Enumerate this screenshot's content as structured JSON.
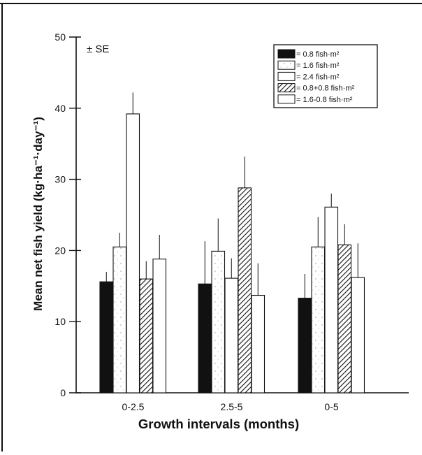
{
  "chart_data": {
    "type": "bar",
    "xlabel": "Growth intervals (months)",
    "ylabel": "Mean net fish yield (kg·ha⁻¹·day⁻¹)",
    "ylim": [
      0,
      50
    ],
    "yticks": [
      0,
      10,
      20,
      30,
      40,
      50
    ],
    "annotation": "± SE",
    "categories": [
      "0-2.5",
      "2.5-5",
      "0-5"
    ],
    "series": [
      {
        "name": "= 0.8 fish·m²",
        "values": [
          15.6,
          15.3,
          13.3
        ],
        "se": [
          1.4,
          6.0,
          3.4
        ],
        "fill": "black"
      },
      {
        "name": "= 1.6 fish·m²",
        "values": [
          20.5,
          19.9,
          20.5
        ],
        "se": [
          2.0,
          4.6,
          4.2
        ],
        "fill": "stipple"
      },
      {
        "name": "= 2.4 fish·m²",
        "values": [
          39.2,
          16.1,
          26.1
        ],
        "se": [
          3.0,
          2.8,
          1.9
        ],
        "fill": "white"
      },
      {
        "name": "= 0.8+0.8 fish·m²",
        "values": [
          16.0,
          28.8,
          20.8
        ],
        "se": [
          2.5,
          4.4,
          2.9
        ],
        "fill": "hatch"
      },
      {
        "name": "= 1.6-0.8 fish·m²",
        "values": [
          18.8,
          13.7,
          16.2
        ],
        "se": [
          3.4,
          4.5,
          4.8
        ],
        "fill": "white"
      }
    ],
    "legend_placement": "top-right",
    "grid": false
  },
  "colors": {
    "ink": "#111111",
    "background": "#ffffff"
  }
}
